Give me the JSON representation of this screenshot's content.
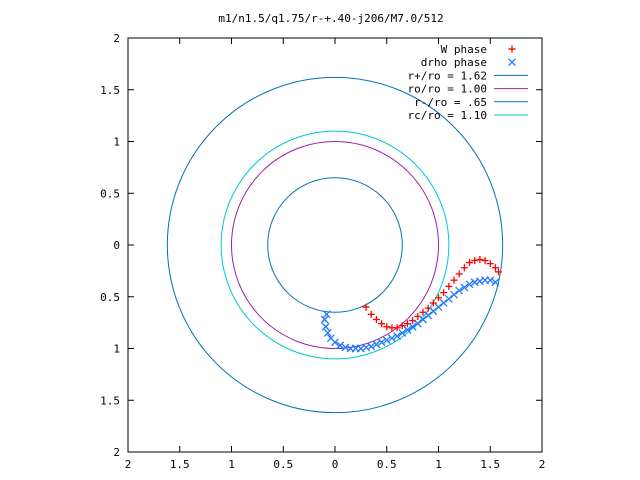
{
  "chart_data": {
    "type": "scatter",
    "title": "m1/n1.5/q1.75/r-+.40-j206/M7.0/512",
    "xlabel": "",
    "ylabel": "",
    "xlim": [
      -2,
      2
    ],
    "ylim": [
      -2,
      2
    ],
    "x_ticks": [
      "2",
      "1.5",
      "1",
      "0.5",
      "0",
      "0.5",
      "1",
      "1.5",
      "2"
    ],
    "y_ticks": [
      "2",
      "1.5",
      "1",
      "0.5",
      "0",
      "0.5",
      "1",
      "1.5",
      "2"
    ],
    "grid": false,
    "legend_position": "top-right",
    "circles": [
      {
        "name": "r+/ro = 1.62",
        "radius": 1.62,
        "color": "#0072b2"
      },
      {
        "name": "ro/ro = 1.00",
        "radius": 1.0,
        "color": "#a020a0"
      },
      {
        "name": "r-/ro = .65",
        "radius": 0.65,
        "color": "#0072b2"
      },
      {
        "name": "rc/ro = 1.10",
        "radius": 1.1,
        "color": "#00c8d0"
      }
    ],
    "series": [
      {
        "name": "W phase",
        "marker": "plus",
        "color": "#ff0000",
        "x": [
          0.3,
          0.35,
          0.4,
          0.45,
          0.5,
          0.55,
          0.6,
          0.65,
          0.7,
          0.75,
          0.8,
          0.85,
          0.9,
          0.95,
          1.0,
          1.05,
          1.1,
          1.15,
          1.2,
          1.25,
          1.3,
          1.35,
          1.4,
          1.45,
          1.5,
          1.55,
          1.58
        ],
        "y": [
          -0.6,
          -0.67,
          -0.72,
          -0.76,
          -0.79,
          -0.8,
          -0.8,
          -0.78,
          -0.76,
          -0.73,
          -0.69,
          -0.65,
          -0.61,
          -0.56,
          -0.51,
          -0.46,
          -0.4,
          -0.34,
          -0.28,
          -0.22,
          -0.17,
          -0.15,
          -0.14,
          -0.15,
          -0.18,
          -0.22,
          -0.26
        ]
      },
      {
        "name": "drho phase",
        "marker": "cross",
        "color": "#1e78ff",
        "x": [
          -0.08,
          -0.1,
          -0.09,
          -0.07,
          -0.04,
          0.0,
          0.05,
          0.1,
          0.15,
          0.2,
          0.25,
          0.3,
          0.35,
          0.4,
          0.45,
          0.5,
          0.55,
          0.6,
          0.65,
          0.7,
          0.75,
          0.8,
          0.85,
          0.9,
          0.95,
          1.0,
          1.05,
          1.1,
          1.15,
          1.2,
          1.25,
          1.3,
          1.35,
          1.4,
          1.45,
          1.5,
          1.55
        ],
        "y": [
          -0.67,
          -0.72,
          -0.79,
          -0.85,
          -0.9,
          -0.94,
          -0.97,
          -0.99,
          -1.0,
          -1.0,
          -1.0,
          -0.99,
          -0.98,
          -0.96,
          -0.94,
          -0.92,
          -0.9,
          -0.88,
          -0.85,
          -0.82,
          -0.79,
          -0.76,
          -0.72,
          -0.68,
          -0.64,
          -0.6,
          -0.56,
          -0.52,
          -0.48,
          -0.44,
          -0.41,
          -0.38,
          -0.36,
          -0.35,
          -0.34,
          -0.34,
          -0.36
        ]
      }
    ]
  }
}
